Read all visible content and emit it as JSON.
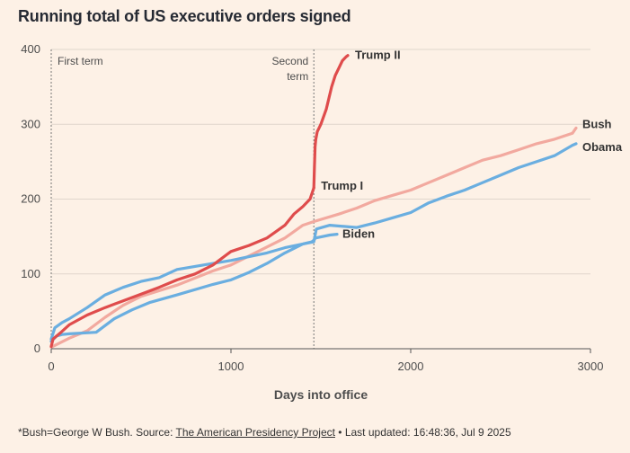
{
  "title": "Running total of US executive orders signed",
  "footer": {
    "prefix": "*Bush=George W Bush. Source: ",
    "source_link": "The American Presidency Project",
    "suffix": " • Last updated: 16:48:36, Jul 9 2025"
  },
  "chart_data": {
    "type": "line",
    "title": "Running total of US executive orders signed",
    "xlabel": "Days into office",
    "ylabel": "",
    "xlim": [
      0,
      3000
    ],
    "ylim": [
      0,
      400
    ],
    "x_ticks": [
      0,
      1000,
      2000,
      3000
    ],
    "y_ticks": [
      0,
      100,
      200,
      300,
      400
    ],
    "grid": "horizontal",
    "annotations": [
      {
        "x": 0,
        "line1": "First term",
        "line2": ""
      },
      {
        "x": 1461,
        "line1": "Second",
        "line2": "term"
      }
    ],
    "series": [
      {
        "name": "Bush",
        "color": "#f2a99f",
        "points": [
          [
            0,
            2
          ],
          [
            50,
            8
          ],
          [
            100,
            14
          ],
          [
            200,
            24
          ],
          [
            300,
            42
          ],
          [
            400,
            58
          ],
          [
            500,
            70
          ],
          [
            700,
            85
          ],
          [
            900,
            104
          ],
          [
            1000,
            112
          ],
          [
            1100,
            124
          ],
          [
            1200,
            136
          ],
          [
            1300,
            148
          ],
          [
            1400,
            165
          ],
          [
            1461,
            170
          ],
          [
            1600,
            180
          ],
          [
            1700,
            188
          ],
          [
            1800,
            198
          ],
          [
            1900,
            205
          ],
          [
            2000,
            212
          ],
          [
            2100,
            222
          ],
          [
            2200,
            232
          ],
          [
            2300,
            242
          ],
          [
            2400,
            252
          ],
          [
            2500,
            258
          ],
          [
            2600,
            266
          ],
          [
            2700,
            274
          ],
          [
            2800,
            280
          ],
          [
            2900,
            288
          ],
          [
            2920,
            295
          ]
        ]
      },
      {
        "name": "Obama",
        "color": "#6aaee0",
        "points": [
          [
            0,
            10
          ],
          [
            30,
            17
          ],
          [
            60,
            19
          ],
          [
            100,
            20
          ],
          [
            250,
            22
          ],
          [
            350,
            40
          ],
          [
            450,
            52
          ],
          [
            550,
            62
          ],
          [
            700,
            72
          ],
          [
            900,
            86
          ],
          [
            1000,
            92
          ],
          [
            1100,
            102
          ],
          [
            1200,
            114
          ],
          [
            1300,
            128
          ],
          [
            1400,
            140
          ],
          [
            1461,
            143
          ],
          [
            1475,
            160
          ],
          [
            1550,
            165
          ],
          [
            1700,
            162
          ],
          [
            1800,
            168
          ],
          [
            1900,
            175
          ],
          [
            2000,
            182
          ],
          [
            2100,
            195
          ],
          [
            2200,
            204
          ],
          [
            2300,
            212
          ],
          [
            2400,
            222
          ],
          [
            2500,
            232
          ],
          [
            2600,
            242
          ],
          [
            2700,
            250
          ],
          [
            2800,
            258
          ],
          [
            2900,
            272
          ],
          [
            2920,
            274
          ]
        ]
      },
      {
        "name": "Biden",
        "color": "#6aaee0",
        "points": [
          [
            0,
            13
          ],
          [
            20,
            28
          ],
          [
            60,
            35
          ],
          [
            100,
            40
          ],
          [
            200,
            55
          ],
          [
            300,
            72
          ],
          [
            400,
            82
          ],
          [
            500,
            90
          ],
          [
            600,
            95
          ],
          [
            700,
            106
          ],
          [
            800,
            110
          ],
          [
            900,
            114
          ],
          [
            1000,
            118
          ],
          [
            1100,
            123
          ],
          [
            1200,
            128
          ],
          [
            1300,
            135
          ],
          [
            1400,
            140
          ],
          [
            1450,
            143
          ],
          [
            1461,
            145
          ],
          [
            1470,
            148
          ],
          [
            1550,
            152
          ],
          [
            1590,
            153
          ]
        ]
      },
      {
        "name": "Trump I",
        "color": "#df4c4c",
        "points": [
          [
            0,
            3
          ],
          [
            10,
            13
          ],
          [
            50,
            21
          ],
          [
            100,
            32
          ],
          [
            200,
            45
          ],
          [
            300,
            55
          ],
          [
            400,
            64
          ],
          [
            500,
            73
          ],
          [
            600,
            82
          ],
          [
            700,
            92
          ],
          [
            800,
            100
          ],
          [
            900,
            112
          ],
          [
            1000,
            130
          ],
          [
            1100,
            138
          ],
          [
            1200,
            148
          ],
          [
            1300,
            165
          ],
          [
            1350,
            180
          ],
          [
            1400,
            190
          ],
          [
            1440,
            200
          ],
          [
            1461,
            215
          ]
        ]
      },
      {
        "name": "Trump II",
        "color": "#df4c4c",
        "points": [
          [
            1461,
            215
          ],
          [
            1464,
            240
          ],
          [
            1468,
            270
          ],
          [
            1472,
            280
          ],
          [
            1480,
            290
          ],
          [
            1500,
            300
          ],
          [
            1530,
            320
          ],
          [
            1560,
            350
          ],
          [
            1580,
            365
          ],
          [
            1600,
            375
          ],
          [
            1620,
            385
          ],
          [
            1640,
            390
          ],
          [
            1650,
            392
          ]
        ]
      }
    ]
  }
}
